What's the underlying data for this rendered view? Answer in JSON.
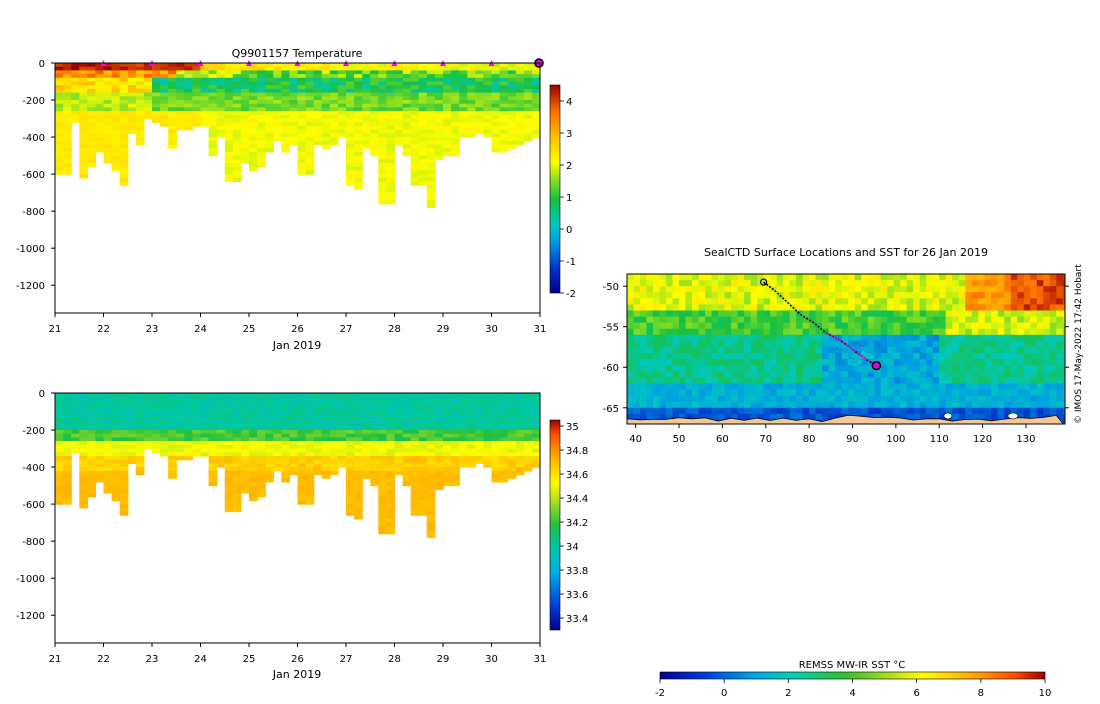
{
  "chart_data": [
    {
      "id": "temperature_section",
      "type": "heatmap",
      "title": "Q9901157  Temperature",
      "xlabel": "Jan 2019",
      "ylabel": "",
      "x_ticks": [
        "21",
        "22",
        "23",
        "24",
        "25",
        "26",
        "27",
        "28",
        "29",
        "30",
        "31"
      ],
      "y_ticks": [
        "0",
        "-200",
        "-400",
        "-600",
        "-800",
        "-1000",
        "-1200"
      ],
      "xlim": [
        21,
        31
      ],
      "ylim": [
        -1350,
        0
      ],
      "colorbar": {
        "min": -2,
        "max": 4.5,
        "ticks": [
          "-2",
          "-1",
          "0",
          "1",
          "2",
          "3",
          "4"
        ]
      },
      "profile_markers": [
        22,
        23,
        24,
        25,
        26,
        27,
        28,
        29,
        30
      ],
      "last_profile_day": 31
    },
    {
      "id": "salinity_section",
      "type": "heatmap",
      "title": "",
      "xlabel": "Jan 2019",
      "ylabel": "",
      "x_ticks": [
        "21",
        "22",
        "23",
        "24",
        "25",
        "26",
        "27",
        "28",
        "29",
        "30",
        "31"
      ],
      "y_ticks": [
        "0",
        "-200",
        "-400",
        "-600",
        "-800",
        "-1000",
        "-1200"
      ],
      "xlim": [
        21,
        31
      ],
      "ylim": [
        -1350,
        0
      ],
      "colorbar": {
        "min": 33.3,
        "max": 35.05,
        "ticks": [
          "33.4",
          "33.6",
          "33.8",
          "34",
          "34.2",
          "34.4",
          "34.6",
          "34.8",
          "35"
        ]
      }
    },
    {
      "id": "sst_map",
      "type": "heatmap",
      "title": "SealCTD Surface Locations and SST for 26 Jan 2019",
      "x_ticks": [
        "40",
        "50",
        "60",
        "70",
        "80",
        "90",
        "100",
        "110",
        "120",
        "130"
      ],
      "y_ticks": [
        "-50",
        "-55",
        "-60",
        "-65"
      ],
      "xlim": [
        38,
        139
      ],
      "ylim": [
        -67,
        -48.5
      ],
      "track": [
        [
          69.5,
          -49.5
        ],
        [
          72,
          -50.5
        ],
        [
          75,
          -52
        ],
        [
          78,
          -53.5
        ],
        [
          81,
          -54.5
        ],
        [
          84,
          -55.8
        ],
        [
          87,
          -56.6
        ],
        [
          90,
          -57.8
        ],
        [
          93,
          -59
        ],
        [
          95.5,
          -59.8
        ]
      ],
      "last_position": [
        95.5,
        -59.8
      ],
      "colorbar": {
        "label": "REMSS MW-IR SST °C",
        "min": -2,
        "max": 10,
        "ticks": [
          "-2",
          "0",
          "2",
          "4",
          "6",
          "8",
          "10"
        ]
      }
    }
  ],
  "credit": "© IMOS 17-May-2022 17:42 Hobart"
}
